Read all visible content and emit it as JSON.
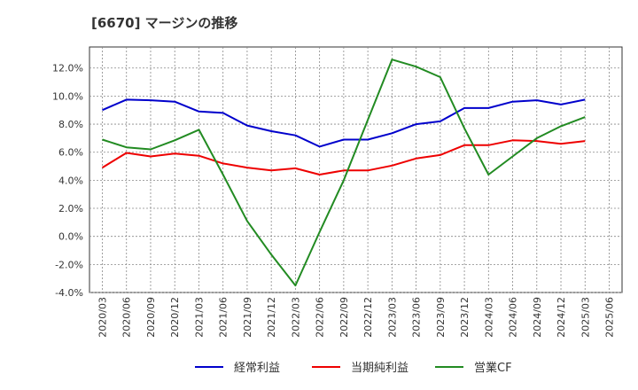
{
  "chart_data": {
    "type": "line",
    "title": "[6670]  マージンの推移",
    "xlabel": "",
    "ylabel": "",
    "categories": [
      "2020/03",
      "2020/06",
      "2020/09",
      "2020/12",
      "2021/03",
      "2021/06",
      "2021/09",
      "2021/12",
      "2022/03",
      "2022/06",
      "2022/09",
      "2022/12",
      "2023/03",
      "2023/06",
      "2023/09",
      "2023/12",
      "2024/03",
      "2024/06",
      "2024/09",
      "2024/12",
      "2025/03",
      "2025/06"
    ],
    "ylim": [
      -4.0,
      13.5
    ],
    "yticks": [
      -4.0,
      -2.0,
      0.0,
      2.0,
      4.0,
      6.0,
      8.0,
      10.0,
      12.0
    ],
    "ytick_labels": [
      "-4.0%",
      "-2.0%",
      "0.0%",
      "2.0%",
      "4.0%",
      "6.0%",
      "8.0%",
      "10.0%",
      "12.0%"
    ],
    "grid": true,
    "legend_position": "bottom",
    "series": [
      {
        "name": "経常利益",
        "color": "#0000cc",
        "values": [
          9.0,
          9.75,
          9.7,
          9.6,
          8.9,
          8.8,
          7.9,
          7.5,
          7.2,
          6.4,
          6.9,
          6.9,
          7.35,
          8.0,
          8.2,
          9.15,
          9.15,
          9.6,
          9.7,
          9.4,
          9.75,
          null
        ]
      },
      {
        "name": "当期純利益",
        "color": "#ee0000",
        "values": [
          4.9,
          5.95,
          5.7,
          5.9,
          5.75,
          5.2,
          4.9,
          4.7,
          4.85,
          4.4,
          4.7,
          4.7,
          5.05,
          5.55,
          5.8,
          6.5,
          6.5,
          6.85,
          6.8,
          6.6,
          6.8,
          null
        ]
      },
      {
        "name": "営業CF",
        "color": "#228b22",
        "values": [
          6.9,
          6.35,
          6.2,
          6.85,
          7.6,
          4.4,
          1.1,
          -1.3,
          -3.5,
          0.3,
          4.0,
          8.3,
          12.6,
          12.1,
          11.35,
          7.7,
          4.4,
          5.7,
          7.0,
          7.85,
          8.5,
          null
        ]
      }
    ]
  }
}
